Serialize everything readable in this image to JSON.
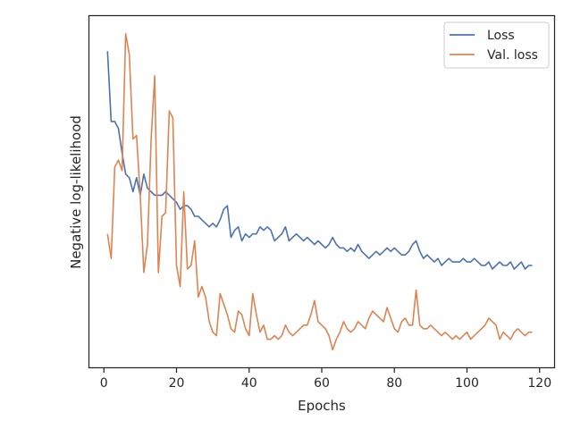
{
  "chart_data": {
    "type": "line",
    "title": "",
    "xlabel": "Epochs",
    "ylabel": "Negative log-likelihood",
    "xlim": [
      -4,
      124
    ],
    "ylim": [
      0,
      100
    ],
    "x_ticks": [
      0,
      20,
      40,
      60,
      80,
      100,
      120
    ],
    "y_ticks_labeled": false,
    "grid": false,
    "legend_position": "top-right",
    "series": [
      {
        "name": "Loss",
        "color": "#4c72b0",
        "x": [
          1,
          2,
          3,
          4,
          5,
          6,
          7,
          8,
          9,
          10,
          11,
          12,
          13,
          14,
          15,
          16,
          17,
          18,
          19,
          20,
          21,
          22,
          23,
          24,
          25,
          26,
          27,
          28,
          29,
          30,
          31,
          32,
          33,
          34,
          35,
          36,
          37,
          38,
          39,
          40,
          41,
          42,
          43,
          44,
          45,
          46,
          47,
          48,
          49,
          50,
          51,
          52,
          53,
          54,
          55,
          56,
          57,
          58,
          59,
          60,
          61,
          62,
          63,
          64,
          65,
          66,
          67,
          68,
          69,
          70,
          71,
          72,
          73,
          74,
          75,
          76,
          77,
          78,
          79,
          80,
          81,
          82,
          83,
          84,
          85,
          86,
          87,
          88,
          89,
          90,
          91,
          92,
          93,
          94,
          95,
          96,
          97,
          98,
          99,
          100,
          101,
          102,
          103,
          104,
          105,
          106,
          107,
          108,
          109,
          110,
          111,
          112,
          113,
          114,
          115,
          116,
          117,
          118
        ],
        "values": [
          90,
          70,
          70,
          68,
          61,
          55,
          54,
          50,
          54,
          49,
          55,
          51,
          50,
          49,
          49,
          49,
          50,
          49,
          48,
          47,
          45,
          46,
          46,
          45,
          43,
          43,
          42,
          41,
          40,
          41,
          40,
          42,
          45,
          46,
          37,
          39,
          40,
          36,
          38,
          37,
          38,
          38,
          40,
          39,
          40,
          39,
          36,
          37,
          38,
          40,
          36,
          37,
          38,
          37,
          36,
          37,
          36,
          35,
          36,
          35,
          34,
          35,
          37,
          35,
          34,
          34,
          33,
          34,
          33,
          35,
          33,
          32,
          31,
          32,
          33,
          32,
          33,
          34,
          33,
          34,
          33,
          32,
          32,
          33,
          35,
          36,
          33,
          31,
          32,
          31,
          30,
          31,
          29,
          30,
          31,
          30,
          30,
          30,
          31,
          30,
          30,
          31,
          30,
          29,
          29,
          30,
          28,
          29,
          30,
          29,
          29,
          30,
          28,
          29,
          30,
          28,
          29,
          29
        ]
      },
      {
        "name": "Val. loss",
        "color": "#dd8452",
        "x": [
          1,
          2,
          3,
          4,
          5,
          6,
          7,
          8,
          9,
          10,
          11,
          12,
          13,
          14,
          15,
          16,
          17,
          18,
          19,
          20,
          21,
          22,
          23,
          24,
          25,
          26,
          27,
          28,
          29,
          30,
          31,
          32,
          33,
          34,
          35,
          36,
          37,
          38,
          39,
          40,
          41,
          42,
          43,
          44,
          45,
          46,
          47,
          48,
          49,
          50,
          51,
          52,
          53,
          54,
          55,
          56,
          57,
          58,
          59,
          60,
          61,
          62,
          63,
          64,
          65,
          66,
          67,
          68,
          69,
          70,
          71,
          72,
          73,
          74,
          75,
          76,
          77,
          78,
          79,
          80,
          81,
          82,
          83,
          84,
          85,
          86,
          87,
          88,
          89,
          90,
          91,
          92,
          93,
          94,
          95,
          96,
          97,
          98,
          99,
          100,
          101,
          102,
          103,
          104,
          105,
          106,
          107,
          108,
          109,
          110,
          111,
          112,
          113,
          114,
          115,
          116,
          117,
          118
        ],
        "values": [
          38,
          31,
          57,
          59,
          56,
          95,
          89,
          65,
          66,
          49,
          27,
          35,
          65,
          83,
          27,
          43,
          44,
          73,
          71,
          29,
          23,
          50,
          28,
          29,
          36,
          20,
          23,
          20,
          13,
          10,
          9,
          21,
          18,
          15,
          11,
          10,
          16,
          15,
          11,
          9,
          21,
          15,
          10,
          12,
          8,
          8,
          9,
          8,
          9,
          12,
          10,
          9,
          10,
          11,
          12,
          12,
          15,
          19,
          13,
          12,
          11,
          9,
          5,
          8,
          10,
          13,
          11,
          10,
          11,
          13,
          12,
          11,
          14,
          16,
          15,
          14,
          13,
          17,
          14,
          11,
          10,
          13,
          14,
          12,
          12,
          22,
          12,
          11,
          11,
          12,
          11,
          10,
          9,
          10,
          9,
          8,
          9,
          8,
          9,
          10,
          8,
          9,
          10,
          11,
          12,
          14,
          13,
          12,
          8,
          10,
          9,
          8,
          10,
          11,
          10,
          9,
          10,
          10
        ]
      }
    ]
  }
}
